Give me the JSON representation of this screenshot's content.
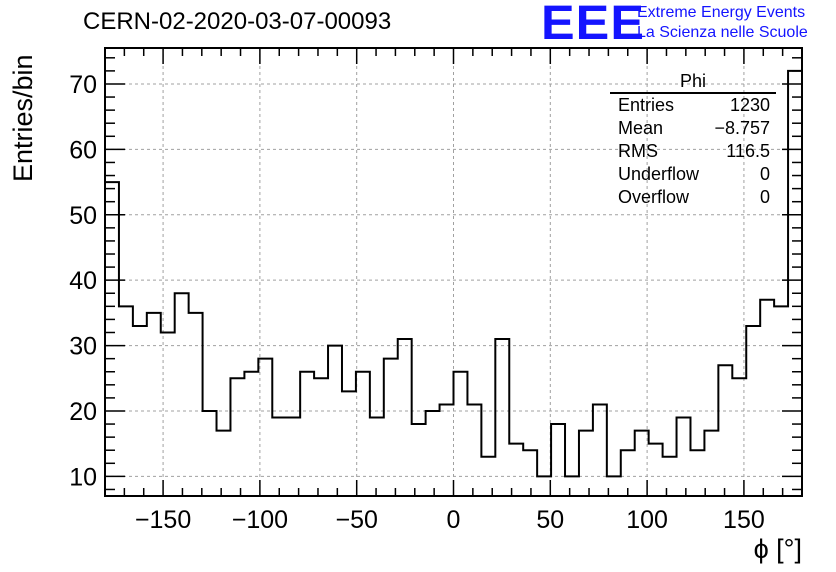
{
  "header": {
    "title": "CERN-02-2020-03-07-00093",
    "logo_text": "EEE",
    "logo_line1": "Extreme Energy Events",
    "logo_line2": "La Scienza nelle Scuole"
  },
  "stats_box": {
    "title": "Phi",
    "rows": [
      {
        "label": "Entries",
        "value": "1230"
      },
      {
        "label": "Mean",
        "value": "−8.757"
      },
      {
        "label": "RMS",
        "value": "116.5"
      },
      {
        "label": "Underflow",
        "value": "0"
      },
      {
        "label": "Overflow",
        "value": "0"
      }
    ]
  },
  "colors": {
    "line": "#000000",
    "grid": "#a0a0a0",
    "logo": "#1414ff"
  },
  "chart_data": {
    "type": "histogram",
    "xlabel": "ϕ [°]",
    "ylabel": "Entries/bin",
    "xlim": [
      -180,
      180
    ],
    "ylim": [
      7,
      75.5
    ],
    "bin_width": 7.2,
    "bin_edges_start": -180,
    "values": [
      55,
      36,
      33,
      35,
      32,
      38,
      35,
      20,
      17,
      25,
      26,
      28,
      19,
      19,
      26,
      25,
      30,
      23,
      26,
      19,
      28,
      31,
      18,
      20,
      21,
      26,
      21,
      13,
      31,
      15,
      14,
      10,
      18,
      10,
      17,
      21,
      10,
      14,
      17,
      15,
      13,
      19,
      14,
      17,
      27,
      25,
      33,
      37,
      36,
      72
    ],
    "x_ticks": [
      -150,
      -100,
      -50,
      0,
      50,
      100,
      150
    ],
    "x_tick_labels": [
      "−150",
      "−100",
      "−50",
      "0",
      "50",
      "100",
      "150"
    ],
    "y_ticks": [
      10,
      20,
      30,
      40,
      50,
      60,
      70
    ],
    "y_tick_labels": [
      "10",
      "20",
      "30",
      "40",
      "50",
      "60",
      "70"
    ],
    "grid": true
  }
}
